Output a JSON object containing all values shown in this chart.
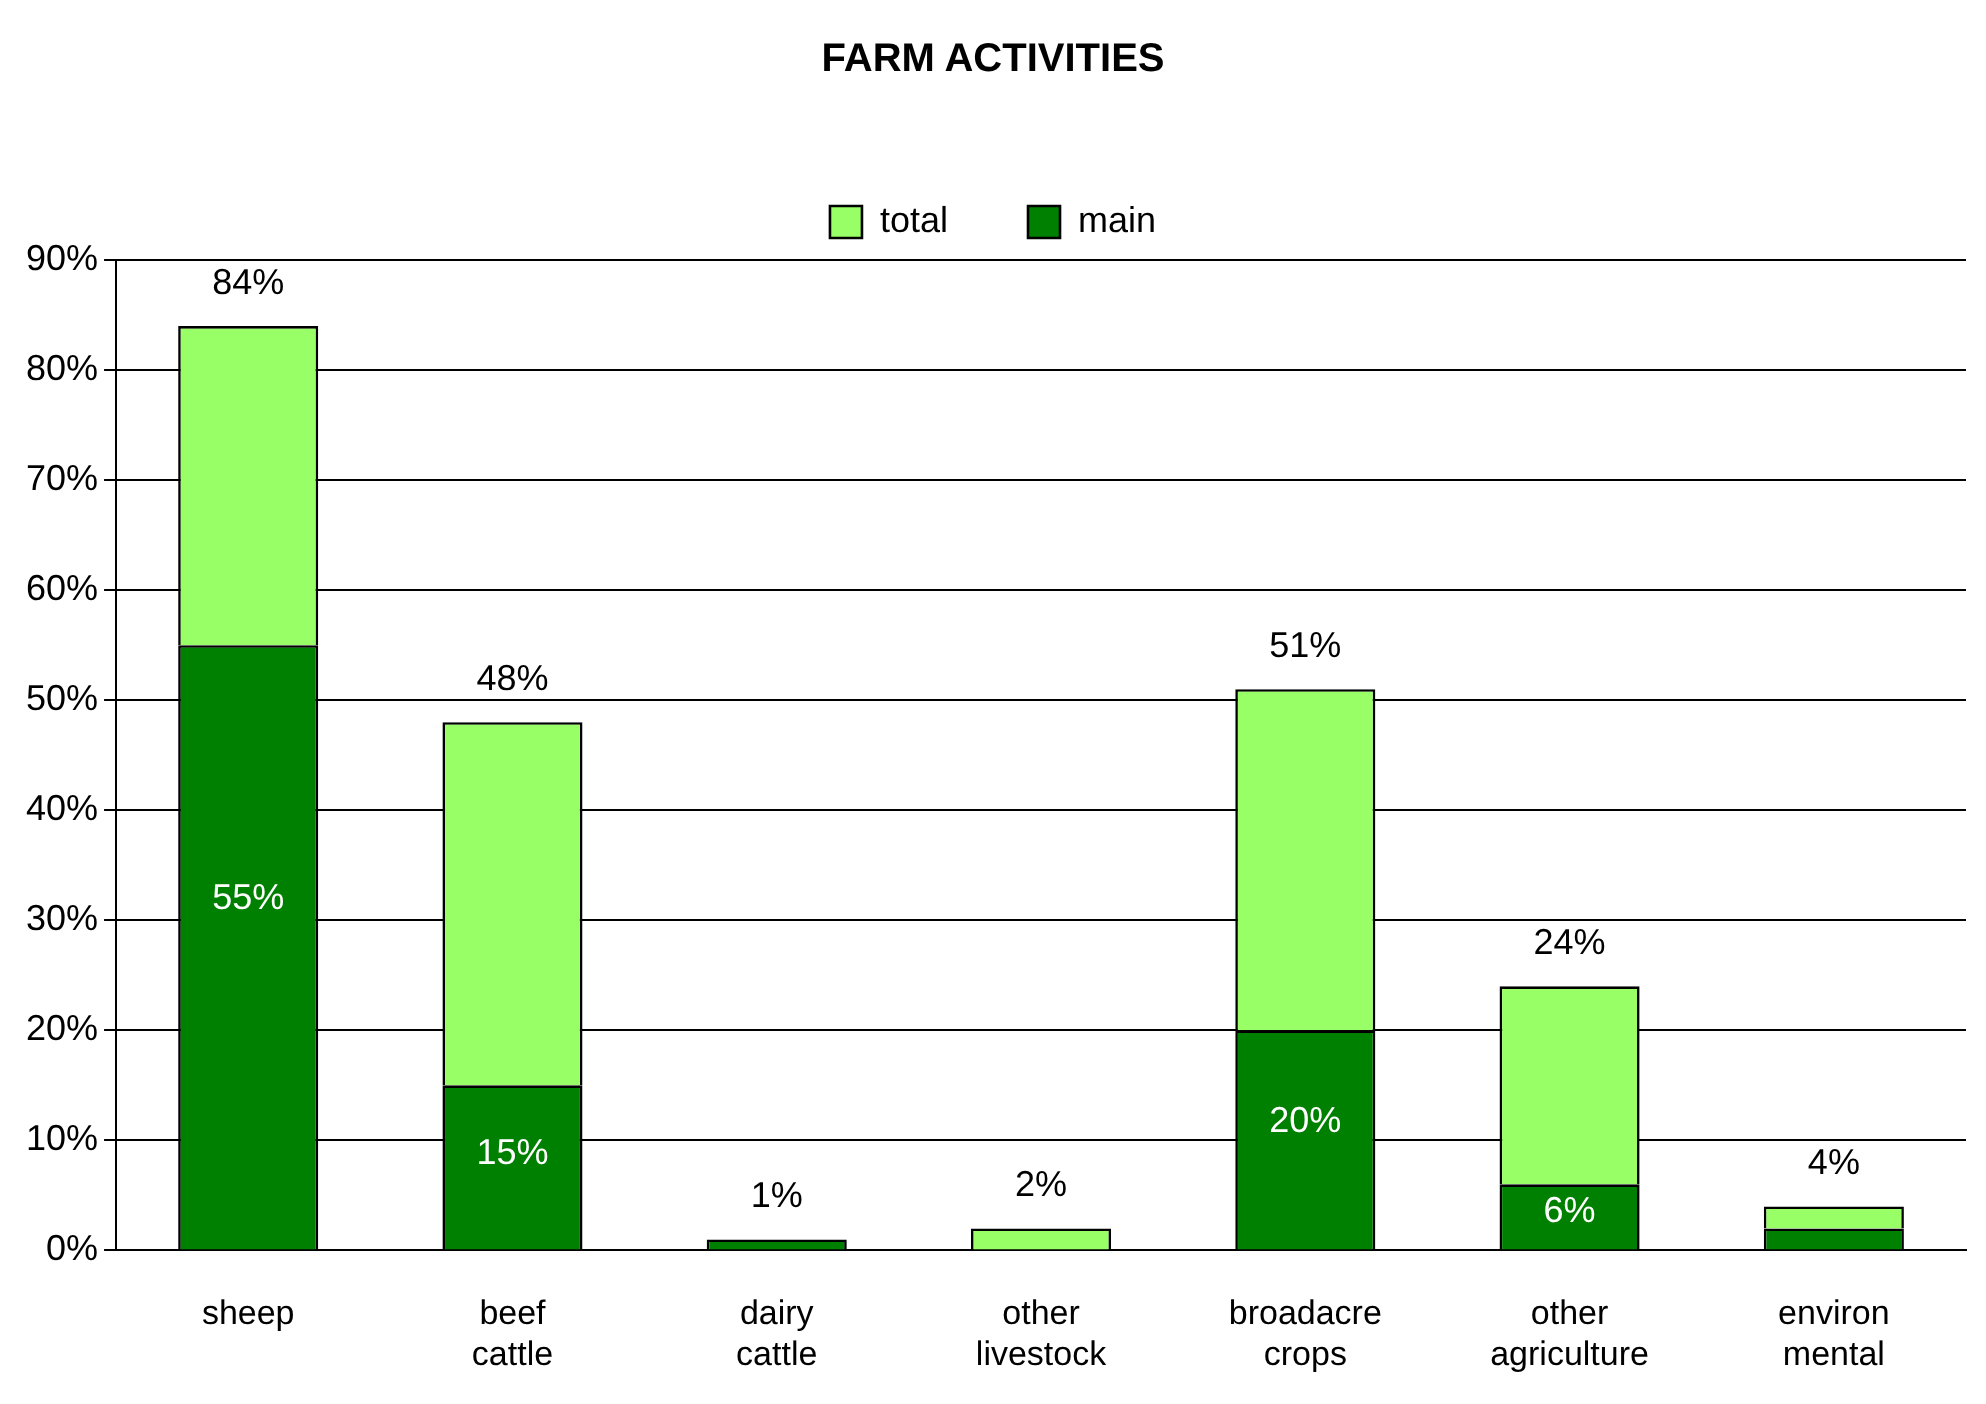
{
  "chart_data": {
    "type": "bar",
    "title": "FARM ACTIVITIES",
    "categories": [
      "sheep",
      "beef cattle",
      "dairy cattle",
      "other livestock",
      "broadacre crops",
      "other agriculture",
      "environ mental"
    ],
    "stacked": true,
    "series": [
      {
        "name": "main",
        "color": "#008000",
        "values": [
          55,
          15,
          1,
          0,
          20,
          6,
          2
        ],
        "value_labels": [
          "55%",
          "15%",
          null,
          null,
          "20%",
          "6%",
          null
        ]
      },
      {
        "name": "total",
        "color": "#99ff66",
        "values": [
          29,
          33,
          0,
          2,
          31,
          18,
          2
        ]
      }
    ],
    "totals": [
      "84%",
      "48%",
      "1%",
      "2%",
      "51%",
      "24%",
      "4%"
    ],
    "ylim": [
      0,
      90
    ],
    "yticks": [
      {
        "value": 0,
        "label": "0%"
      },
      {
        "value": 10,
        "label": "10%"
      },
      {
        "value": 20,
        "label": "20%"
      },
      {
        "value": 30,
        "label": "30%"
      },
      {
        "value": 40,
        "label": "40%"
      },
      {
        "value": 50,
        "label": "50%"
      },
      {
        "value": 60,
        "label": "60%"
      },
      {
        "value": 70,
        "label": "70%"
      },
      {
        "value": 80,
        "label": "80%"
      },
      {
        "value": 90,
        "label": "90%"
      }
    ],
    "grid": "y",
    "legend": "top"
  }
}
